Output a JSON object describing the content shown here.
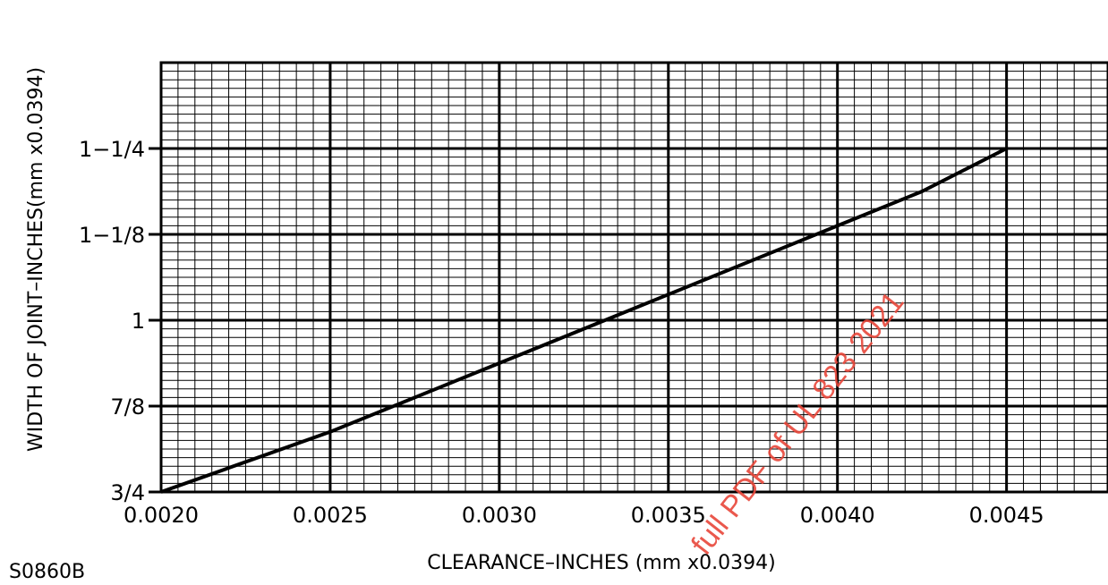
{
  "figure_id": "S0860B",
  "watermark": "full PDF of UL 823 2021",
  "chart_data": {
    "type": "line",
    "title": "",
    "xlabel": "CLEARANCE–INCHES (mm  x0.0394)",
    "ylabel": "WIDTH  OF  JOINT–INCHES(mm  x0.0394)",
    "xlim": [
      0.002,
      0.0048
    ],
    "ylim": [
      0.75,
      1.375
    ],
    "x_ticks": [
      {
        "value": 0.002,
        "label": "0.0020"
      },
      {
        "value": 0.0025,
        "label": "0.0025"
      },
      {
        "value": 0.003,
        "label": "0.0030"
      },
      {
        "value": 0.0035,
        "label": "0.0035"
      },
      {
        "value": 0.004,
        "label": "0.0040"
      },
      {
        "value": 0.0045,
        "label": "0.0045"
      }
    ],
    "y_ticks": [
      {
        "value": 0.75,
        "label": "3/4"
      },
      {
        "value": 0.875,
        "label": "7/8"
      },
      {
        "value": 1.0,
        "label": "1"
      },
      {
        "value": 1.125,
        "label": "1−1/8"
      },
      {
        "value": 1.25,
        "label": "1−1/4"
      }
    ],
    "grid": true,
    "grid_minor_divisions": 10,
    "series": [
      {
        "color": "#000000",
        "x": [
          0.002,
          0.0025,
          0.003,
          0.0035,
          0.004,
          0.00425,
          0.0045
        ],
        "y": [
          0.75,
          0.8375,
          0.9375,
          1.0375,
          1.1375,
          1.1875,
          1.25
        ]
      }
    ]
  }
}
